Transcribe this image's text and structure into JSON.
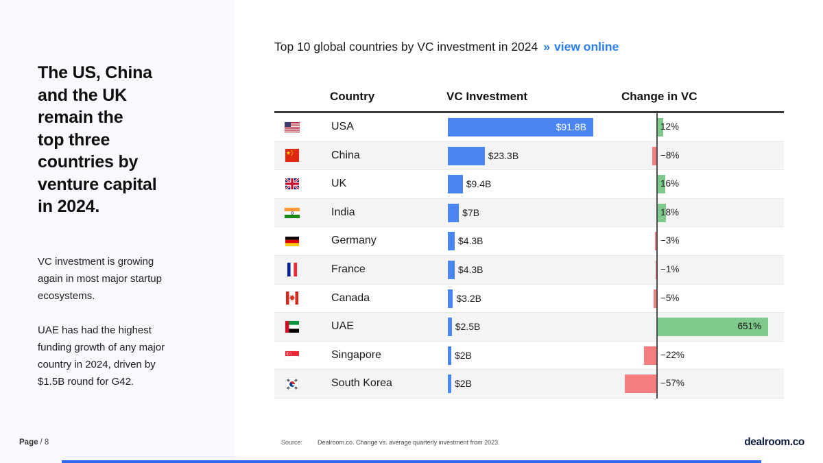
{
  "slide": {
    "sidebar": {
      "heading_lines": [
        "The US, China",
        "and the UK",
        "remain the",
        "top three",
        "countries by",
        "venture capital",
        "in 2024."
      ],
      "paragraph1": "VC investment is growing again in most major startup ecosystems.",
      "paragraph2": "UAE has had the highest funding growth of any major country in 2024, driven by $1.5B round for G42.",
      "page_label": "Page",
      "page_number": "/ 8"
    },
    "header": {
      "title": "Top 10 global countries by VC investment in 2024",
      "link_arrow": "»",
      "link_label": "view online"
    },
    "footer": {
      "source_label": "Source:",
      "source_text": "Dealroom.co. Change vs. average quarterly investment from 2023.",
      "logo_text": "dealroom.co"
    }
  },
  "chart_data": {
    "type": "table",
    "title": "Top 10 global countries by VC investment in 2024",
    "columns": [
      "Country",
      "VC Investment",
      "Change in VC"
    ],
    "vc_axis_max_b": 91.8,
    "change_note": "Change vs. average quarterly investment from 2023",
    "rows": [
      {
        "country": "USA",
        "flag": "us-flag",
        "vc_investment_usd_b": 91.8,
        "vc_label": "$91.8B",
        "change_pct": 12,
        "change_label": "12%"
      },
      {
        "country": "China",
        "flag": "cn-flag",
        "vc_investment_usd_b": 23.3,
        "vc_label": "$23.3B",
        "change_pct": -8,
        "change_label": "−8%"
      },
      {
        "country": "UK",
        "flag": "gb-flag",
        "vc_investment_usd_b": 9.4,
        "vc_label": "$9.4B",
        "change_pct": 16,
        "change_label": "16%"
      },
      {
        "country": "India",
        "flag": "in-flag",
        "vc_investment_usd_b": 7,
        "vc_label": "$7B",
        "change_pct": 18,
        "change_label": "18%"
      },
      {
        "country": "Germany",
        "flag": "de-flag",
        "vc_investment_usd_b": 4.3,
        "vc_label": "$4.3B",
        "change_pct": -3,
        "change_label": "−3%"
      },
      {
        "country": "France",
        "flag": "fr-flag",
        "vc_investment_usd_b": 4.3,
        "vc_label": "$4.3B",
        "change_pct": -1,
        "change_label": "−1%"
      },
      {
        "country": "Canada",
        "flag": "ca-flag",
        "vc_investment_usd_b": 3.2,
        "vc_label": "$3.2B",
        "change_pct": -5,
        "change_label": "−5%"
      },
      {
        "country": "UAE",
        "flag": "ae-flag",
        "vc_investment_usd_b": 2.5,
        "vc_label": "$2.5B",
        "change_pct": 651,
        "change_label": "651%"
      },
      {
        "country": "Singapore",
        "flag": "sg-flag",
        "vc_investment_usd_b": 2,
        "vc_label": "$2B",
        "change_pct": -22,
        "change_label": "−22%"
      },
      {
        "country": "South Korea",
        "flag": "kr-flag",
        "vc_investment_usd_b": 2,
        "vc_label": "$2B",
        "change_pct": -57,
        "change_label": "−57%"
      }
    ],
    "colors": {
      "vc_bar": "#4a85f2",
      "positive_bar": "#7ec98b",
      "negative_bar": "#f57f7f",
      "link": "#2b7df2",
      "bottom_bar": "#2e6bf0"
    }
  }
}
